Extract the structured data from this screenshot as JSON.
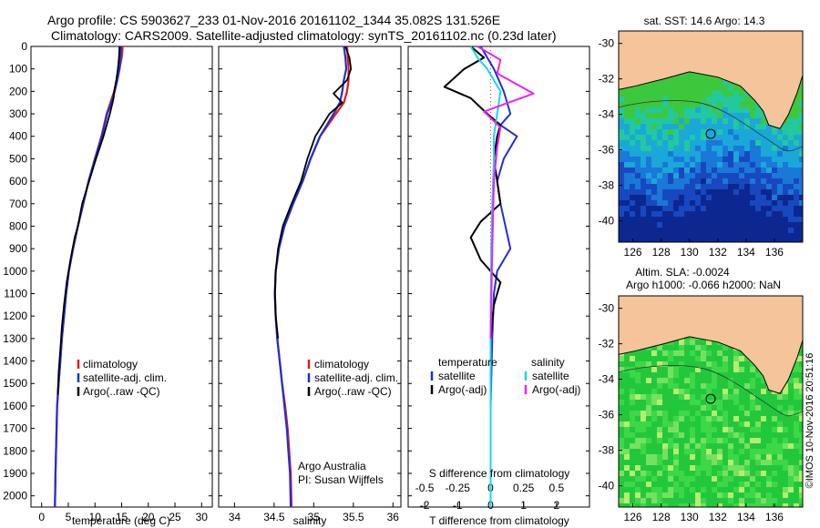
{
  "header": {
    "title_line1": "Argo profile: CS 5903627_233 01-Nov-2016 20161102_1344 35.082S 131.526E",
    "title_line2": "Climatology: CARS2009. Satellite-adjusted climatology: synTS_20161102.nc (0.23d later)"
  },
  "footer_stamp": "©IMOS 10-Nov-2016 20:51:16",
  "credits": {
    "line1": "Argo Australia",
    "line2": "PI: Susan Wijffels"
  },
  "colors": {
    "climatology": "#e31a1c",
    "satellite": "#1f2fd6",
    "argo": "#000000",
    "satellite_sal": "#18d8e8",
    "argo_sal": "#f020f0",
    "land": "#f6c49a",
    "coast_line": "#333333"
  },
  "chart_data": [
    {
      "type": "line",
      "id": "temperature",
      "xlabel": "temperature (deg C)",
      "ylabel": "",
      "xlim": [
        -2,
        32
      ],
      "ylim": [
        2050,
        0
      ],
      "xticks": [
        "0",
        "5",
        "10",
        "15",
        "20",
        "25",
        "30"
      ],
      "yticks": [
        "0",
        "100",
        "200",
        "300",
        "400",
        "500",
        "600",
        "700",
        "800",
        "900",
        "1000",
        "1100",
        "1200",
        "1300",
        "1400",
        "1500",
        "1600",
        "1700",
        "1800",
        "1900",
        "2000"
      ],
      "legend": [
        "climatology",
        "satellite-adj. clim.",
        "Argo(..raw -QC)"
      ],
      "series": [
        {
          "name": "climatology",
          "color_key": "climatology",
          "x": [
            15.2,
            15.0,
            14.6,
            14.1,
            13.6,
            12.9,
            12.2,
            11.2,
            10.0,
            8.8,
            7.8,
            6.8,
            5.9,
            5.1,
            4.6,
            4.2,
            3.8,
            3.5,
            3.2,
            2.9,
            2.7,
            2.6,
            2.5
          ],
          "y": [
            0,
            50,
            100,
            150,
            200,
            250,
            300,
            400,
            500,
            600,
            700,
            800,
            900,
            1000,
            1100,
            1200,
            1300,
            1400,
            1500,
            1600,
            1800,
            1900,
            2050
          ]
        },
        {
          "name": "satellite-adj. clim.",
          "color_key": "satellite",
          "x": [
            14.9,
            14.8,
            14.6,
            14.2,
            13.7,
            13.1,
            12.3,
            11.3,
            10.0,
            8.8,
            7.8,
            6.8,
            5.9,
            5.1,
            4.6,
            4.2,
            3.8,
            3.5,
            3.2,
            2.9,
            2.7,
            2.6,
            2.5
          ],
          "y": [
            0,
            50,
            100,
            150,
            200,
            250,
            300,
            400,
            500,
            600,
            700,
            800,
            900,
            1000,
            1100,
            1200,
            1300,
            1400,
            1500,
            1600,
            1800,
            1900,
            2050
          ]
        },
        {
          "name": "Argo(..raw -QC)",
          "color_key": "argo",
          "x": [
            14.6,
            14.5,
            14.3,
            14.0,
            13.6,
            13.5,
            12.8,
            11.6,
            10.2,
            8.9,
            7.6,
            6.8,
            6.2,
            5.4,
            4.7,
            4.2,
            3.8,
            3.5,
            3.2,
            3.0
          ],
          "y": [
            0,
            50,
            100,
            150,
            200,
            230,
            300,
            400,
            500,
            600,
            700,
            800,
            850,
            950,
            1050,
            1150,
            1250,
            1350,
            1450,
            1550
          ]
        }
      ]
    },
    {
      "type": "line",
      "id": "salinity",
      "xlabel": "salinity",
      "ylabel": "",
      "xlim": [
        33.8,
        36.1
      ],
      "ylim": [
        2050,
        0
      ],
      "xticks": [
        "34",
        "34.5",
        "35",
        "35.5",
        "36"
      ],
      "legend": [
        "climatology",
        "satellite-adj. clim.",
        "Argo(..raw -QC)"
      ],
      "series": [
        {
          "name": "climatology",
          "color_key": "climatology",
          "x": [
            35.42,
            35.43,
            35.44,
            35.44,
            35.42,
            35.38,
            35.28,
            35.08,
            34.96,
            34.86,
            34.74,
            34.63,
            34.56,
            34.52,
            34.51,
            34.52,
            34.54,
            34.57,
            34.6,
            34.64,
            34.67,
            34.69,
            34.71,
            34.72
          ],
          "y": [
            0,
            50,
            100,
            150,
            200,
            250,
            300,
            400,
            500,
            600,
            700,
            800,
            900,
            1000,
            1100,
            1200,
            1300,
            1400,
            1500,
            1600,
            1700,
            1800,
            1900,
            2050
          ]
        },
        {
          "name": "satellite-adj. clim.",
          "color_key": "satellite",
          "x": [
            35.38,
            35.4,
            35.41,
            35.38,
            35.36,
            35.33,
            35.25,
            35.08,
            34.96,
            34.86,
            34.74,
            34.63,
            34.56,
            34.52,
            34.51,
            34.52,
            34.54,
            34.57,
            34.6,
            34.63,
            34.66,
            34.68,
            34.7,
            34.71
          ],
          "y": [
            0,
            50,
            100,
            150,
            200,
            250,
            300,
            400,
            500,
            600,
            700,
            800,
            900,
            1000,
            1100,
            1200,
            1300,
            1400,
            1500,
            1600,
            1700,
            1800,
            1900,
            2050
          ]
        },
        {
          "name": "Argo(..raw -QC)",
          "color_key": "argo",
          "x": [
            35.4,
            35.45,
            35.47,
            35.42,
            35.25,
            35.36,
            35.2,
            35.02,
            34.92,
            34.84,
            34.72,
            34.61,
            34.55,
            34.52,
            34.51,
            34.52,
            34.55
          ],
          "y": [
            0,
            50,
            100,
            150,
            210,
            250,
            300,
            400,
            500,
            600,
            700,
            800,
            900,
            1000,
            1100,
            1200,
            1300
          ]
        }
      ]
    },
    {
      "type": "line",
      "id": "difference",
      "xlabel": "T difference from climatology",
      "xlabel_top": "S difference from climatology",
      "xlim": [
        -2.5,
        3
      ],
      "ylim": [
        2050,
        0
      ],
      "xticks_T": [
        "-2",
        "-1",
        "0",
        "1",
        "2"
      ],
      "xticks_S": [
        "-0.5",
        "-0.25",
        "0",
        "0.25",
        "0.5"
      ],
      "legend_headers": [
        "temperature",
        "salinity"
      ],
      "legend": [
        "satellite",
        "Argo(-adj)",
        "satellite",
        "Argo(-adj)"
      ],
      "series": [
        {
          "name": "satellite",
          "group": "temperature",
          "color_key": "satellite",
          "x": [
            -0.3,
            -0.1,
            0.1,
            0.4,
            0.6,
            0.3,
            0.8,
            0.4,
            0.2,
            0.3,
            0.6,
            0.2,
            0.1,
            0.05,
            0.0,
            0.0
          ],
          "y": [
            0,
            50,
            100,
            200,
            300,
            350,
            400,
            500,
            600,
            700,
            900,
            1000,
            1100,
            1300,
            1600,
            2050
          ]
        },
        {
          "name": "Argo(-adj)",
          "group": "temperature",
          "color_key": "argo",
          "x": [
            -0.6,
            -0.2,
            -0.8,
            -1.4,
            -0.6,
            -0.1,
            0.3,
            0.2,
            0.1,
            0.2,
            0.3,
            -0.3,
            -0.6,
            -0.3,
            0.0,
            0.3,
            0.1,
            0.0,
            0.0
          ],
          "y": [
            0,
            50,
            100,
            180,
            230,
            300,
            350,
            400,
            500,
            600,
            700,
            780,
            850,
            950,
            1000,
            1050,
            1150,
            1300,
            1500
          ]
        },
        {
          "name": "satellite",
          "group": "salinity",
          "color_key": "satellite_sal",
          "x": [
            -0.6,
            -0.4,
            -0.1,
            0.3,
            0.2,
            0.1,
            0.1,
            0.05,
            0.02,
            0.0,
            0.0
          ],
          "y": [
            0,
            50,
            100,
            200,
            300,
            400,
            500,
            700,
            900,
            1200,
            2050
          ]
        },
        {
          "name": "Argo(-adj)",
          "group": "salinity",
          "color_key": "argo_sal",
          "x": [
            -0.4,
            0.3,
            0.2,
            1.3,
            -0.2,
            0.3,
            0.2,
            0.1,
            0.05,
            0.0
          ],
          "y": [
            0,
            60,
            120,
            210,
            290,
            360,
            450,
            600,
            900,
            1300
          ]
        }
      ]
    }
  ],
  "maps": [
    {
      "id": "sst-map",
      "title": "sat. SST: 14.6  Argo: 14.3",
      "lon_ticks": [
        "126",
        "128",
        "130",
        "132",
        "134",
        "136"
      ],
      "lat_ticks": [
        "-30",
        "-32",
        "-34",
        "-36",
        "-38",
        "-40"
      ],
      "marker": {
        "lon": 131.5,
        "lat": -35.1
      }
    },
    {
      "id": "sla-map",
      "title_line1": "Altim. SLA: -0.0024",
      "title_line2": "Argo h1000: -0.066 h2000: NaN",
      "lon_ticks": [
        "126",
        "128",
        "130",
        "132",
        "134",
        "136"
      ],
      "lat_ticks": [
        "-30",
        "-32",
        "-34",
        "-36",
        "-38",
        "-40"
      ],
      "marker": {
        "lon": 131.5,
        "lat": -35.1
      }
    }
  ]
}
